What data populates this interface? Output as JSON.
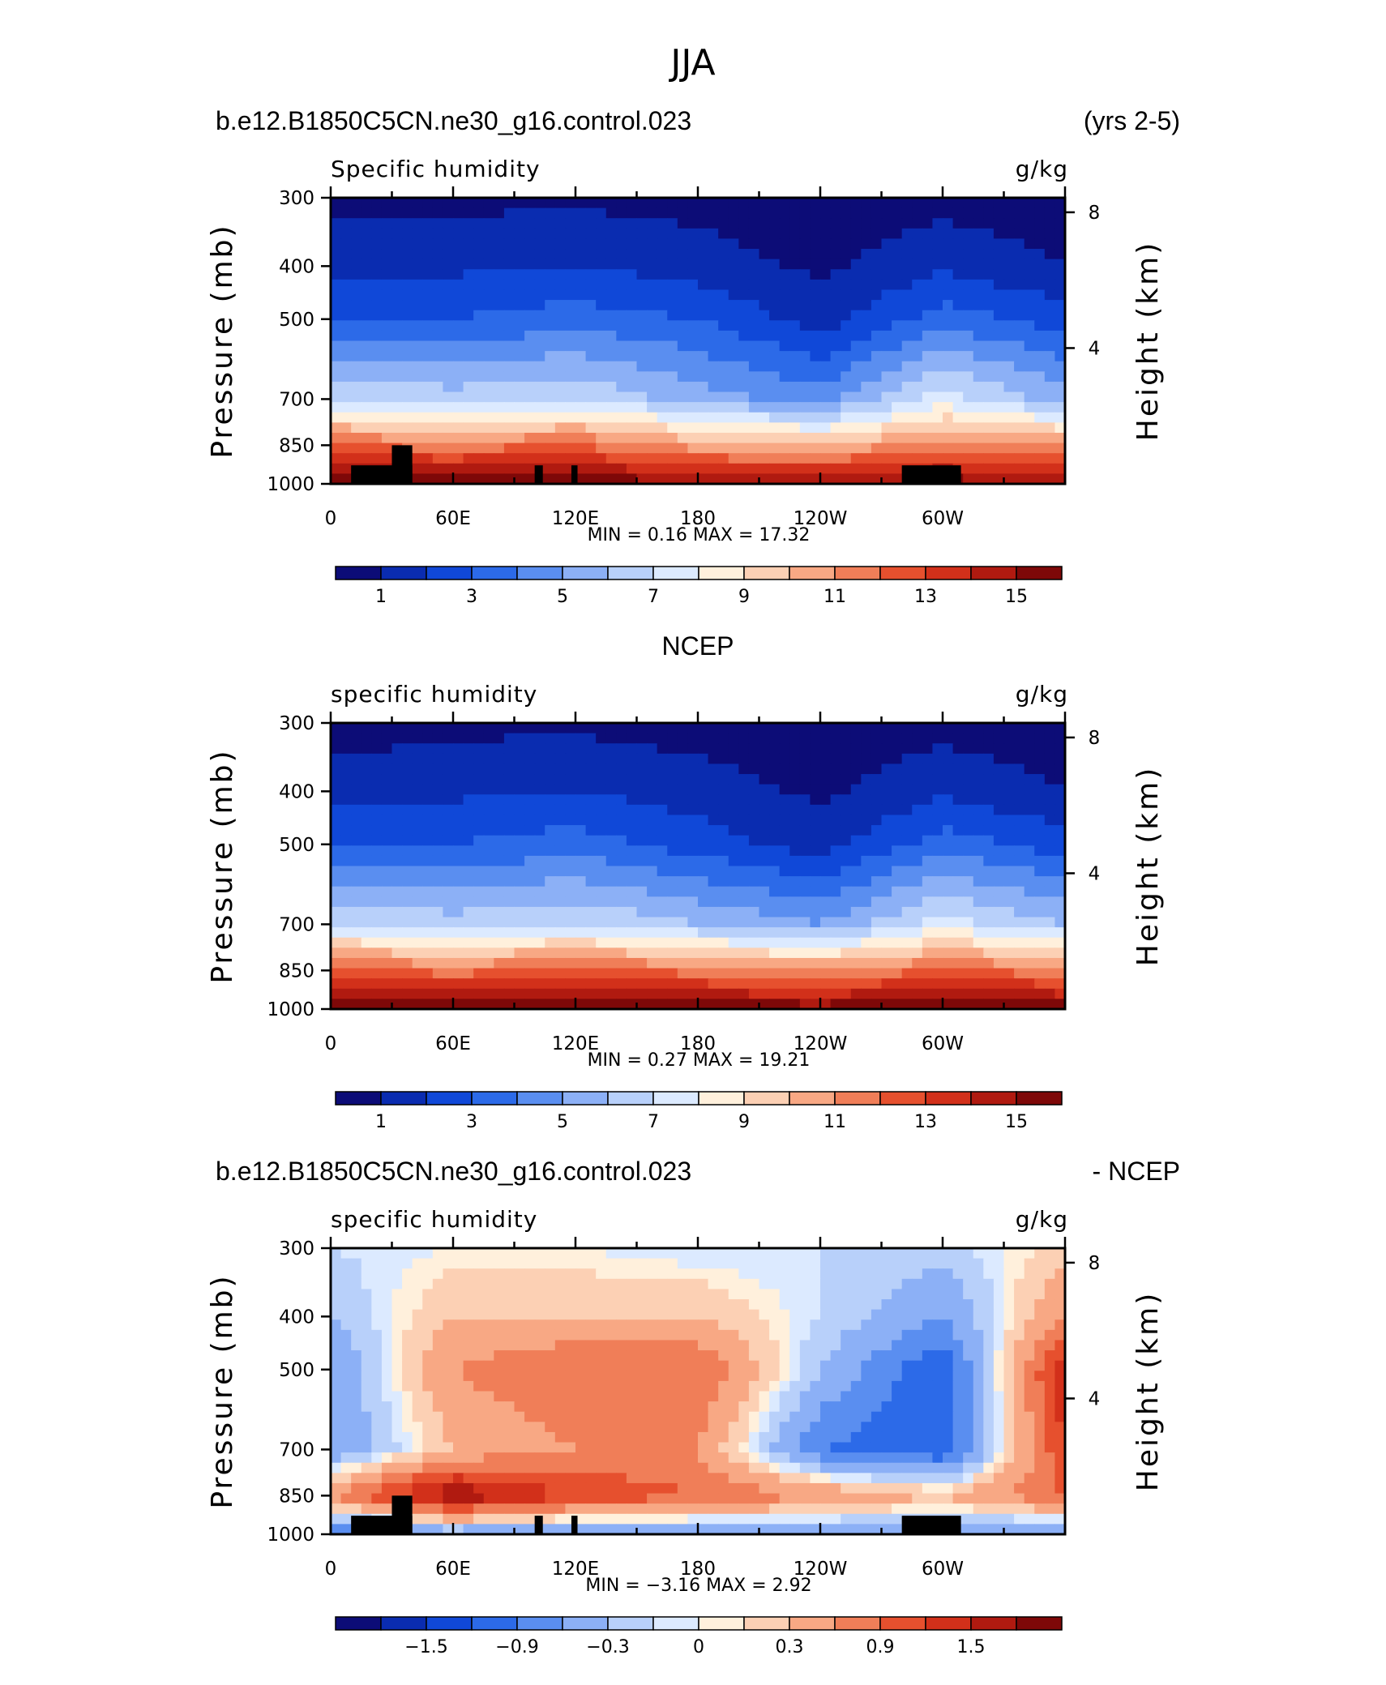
{
  "title": "JJA",
  "panels": [
    {
      "case_left": "b.e12.B1850C5CN.ne30_g16.control.023",
      "case_right": "(yrs 2-5)",
      "variable": "Specific humidity",
      "units": "g/kg",
      "min_max_text": "MIN =    0.16  MAX =   17.32",
      "colorbar_labels": [
        "1",
        "3",
        "5",
        "7",
        "9",
        "11",
        "13",
        "15"
      ],
      "has_topography": true
    },
    {
      "case_left": "",
      "case_center": "NCEP",
      "case_right": "",
      "variable": "specific humidity",
      "units": "g/kg",
      "min_max_text": "MIN =    0.27  MAX =   19.21",
      "colorbar_labels": [
        "1",
        "3",
        "5",
        "7",
        "9",
        "11",
        "13",
        "15"
      ],
      "has_topography": false
    },
    {
      "case_left": "b.e12.B1850C5CN.ne30_g16.control.023",
      "case_right": "- NCEP",
      "variable": "specific humidity",
      "units": "g/kg",
      "min_max_text": "MIN =   −3.16  MAX =    2.92",
      "colorbar_labels": [
        "−1.5",
        "−0.9",
        "−0.3",
        "0",
        "0.3",
        "0.9",
        "1.5"
      ],
      "has_topography": true
    }
  ],
  "axes": {
    "ylabel": "Pressure (mb)",
    "ylabel_right": "Height (km)",
    "y_ticks": [
      "300",
      "400",
      "500",
      "700",
      "850",
      "1000"
    ],
    "y_right_ticks": [
      "8",
      "4"
    ],
    "x_ticks": [
      "0",
      "60E",
      "120E",
      "180",
      "120W",
      "60W"
    ]
  },
  "colors": {
    "abs_palette": [
      "#0c0c77",
      "#0a2cb0",
      "#1048d8",
      "#2c6ae8",
      "#5a8ef0",
      "#8cb0f6",
      "#b8d0fa",
      "#dceaff",
      "#fff0dc",
      "#fcd0b4",
      "#f8a884",
      "#f07e58",
      "#e6502e",
      "#d2301a",
      "#b01a10",
      "#7e0808"
    ],
    "diff_palette": [
      "#0c0c77",
      "#0a2cb0",
      "#1048d8",
      "#2c6ae8",
      "#5a8ef0",
      "#8cb0f6",
      "#b8d0fa",
      "#dceaff",
      "#fff0dc",
      "#fcd0b4",
      "#f8a884",
      "#f07e58",
      "#e6502e",
      "#d2301a",
      "#b01a10",
      "#7e0808"
    ],
    "topography": "#000000"
  },
  "chart_data": [
    {
      "type": "heatmap",
      "title": "Specific humidity",
      "units": "g/kg",
      "xlabel": "",
      "ylabel": "Pressure (mb)",
      "ylabel_right": "Height (km)",
      "xlim": [
        0,
        360
      ],
      "ylim": [
        1000,
        300
      ],
      "pressure_levels_mb": [
        1000,
        850,
        700,
        500,
        400,
        300
      ],
      "longitudes_deg": [
        0,
        60,
        120,
        180,
        240,
        300,
        360
      ],
      "values": [
        [
          15.5,
          15.8,
          16.0,
          15.2,
          15.0,
          15.8,
          14.5
        ],
        [
          12.0,
          11.5,
          12.0,
          10.5,
          10.0,
          11.5,
          11.0
        ],
        [
          7.0,
          6.5,
          7.0,
          5.5,
          4.5,
          7.5,
          5.5
        ],
        [
          3.0,
          3.0,
          3.5,
          3.0,
          1.5,
          3.5,
          2.5
        ],
        [
          1.8,
          1.8,
          2.0,
          1.5,
          0.8,
          1.8,
          1.0
        ],
        [
          0.6,
          0.7,
          0.8,
          0.6,
          0.3,
          0.6,
          0.4
        ]
      ],
      "min": 0.16,
      "max": 17.32,
      "colorbar_levels": [
        1,
        2,
        3,
        4,
        5,
        6,
        7,
        8,
        9,
        10,
        11,
        12,
        13,
        14,
        15
      ]
    },
    {
      "type": "heatmap",
      "title": "specific humidity",
      "units": "g/kg",
      "ylabel": "Pressure (mb)",
      "ylabel_right": "Height (km)",
      "xlim": [
        0,
        360
      ],
      "ylim": [
        1000,
        300
      ],
      "pressure_levels_mb": [
        1000,
        850,
        700,
        500,
        400,
        300
      ],
      "longitudes_deg": [
        0,
        60,
        120,
        180,
        240,
        300,
        360
      ],
      "values": [
        [
          16.5,
          16.0,
          16.5,
          16.0,
          15.5,
          16.5,
          15.5
        ],
        [
          12.5,
          11.5,
          12.5,
          11.5,
          11.0,
          12.0,
          11.5
        ],
        [
          7.0,
          6.5,
          7.0,
          6.0,
          5.0,
          7.5,
          6.0
        ],
        [
          3.0,
          3.0,
          3.5,
          2.5,
          1.5,
          3.5,
          2.5
        ],
        [
          1.5,
          1.8,
          2.0,
          1.5,
          0.8,
          1.8,
          1.0
        ],
        [
          0.5,
          0.7,
          0.8,
          0.5,
          0.3,
          0.6,
          0.4
        ]
      ],
      "min": 0.27,
      "max": 19.21,
      "colorbar_levels": [
        1,
        2,
        3,
        4,
        5,
        6,
        7,
        8,
        9,
        10,
        11,
        12,
        13,
        14,
        15
      ]
    },
    {
      "type": "heatmap",
      "title": "specific humidity",
      "units": "g/kg",
      "ylabel": "Pressure (mb)",
      "ylabel_right": "Height (km)",
      "xlim": [
        0,
        360
      ],
      "ylim": [
        1000,
        300
      ],
      "pressure_levels_mb": [
        1000,
        850,
        700,
        500,
        400,
        300
      ],
      "longitudes_deg": [
        0,
        60,
        120,
        180,
        240,
        300,
        360
      ],
      "values": [
        [
          -0.9,
          -0.6,
          -0.7,
          -0.6,
          -0.5,
          -0.6,
          -0.6
        ],
        [
          0.6,
          1.8,
          1.2,
          0.9,
          0.6,
          0.3,
          0.9
        ],
        [
          -0.6,
          0.3,
          0.6,
          0.6,
          -0.9,
          -1.2,
          1.2
        ],
        [
          -0.6,
          0.6,
          0.9,
          0.9,
          -0.3,
          -1.2,
          1.5
        ],
        [
          -0.3,
          0.3,
          0.3,
          0.3,
          -0.1,
          -0.6,
          0.6
        ],
        [
          -0.1,
          0.0,
          0.0,
          -0.1,
          -0.1,
          -0.2,
          0.2
        ]
      ],
      "min": -3.16,
      "max": 2.92,
      "colorbar_levels": [
        -1.8,
        -1.5,
        -1.2,
        -0.9,
        -0.6,
        -0.3,
        -0.1,
        0,
        0.1,
        0.3,
        0.6,
        0.9,
        1.2,
        1.5,
        1.8
      ]
    }
  ]
}
